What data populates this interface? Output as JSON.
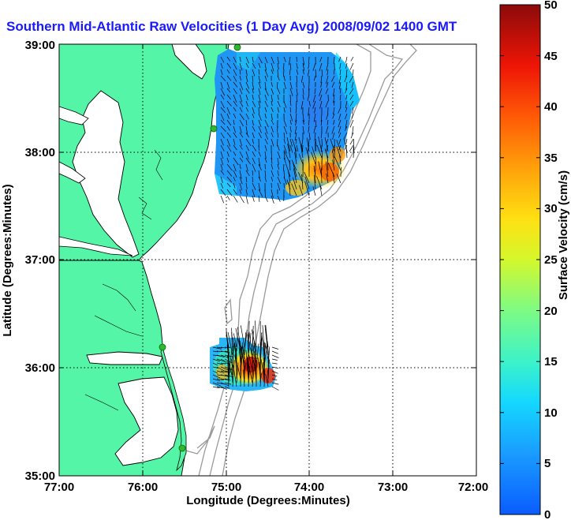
{
  "title": "Southern Mid-Atlantic Raw Velocities (1 Day Avg) 2008/09/02 1400 GMT",
  "x_axis": {
    "label": "Longitude (Degrees:Minutes)",
    "ticks": [
      "77:00",
      "76:00",
      "75:00",
      "74:00",
      "73:00",
      "72:00"
    ],
    "values": [
      -77,
      -76,
      -75,
      -74,
      -73,
      -72
    ]
  },
  "y_axis": {
    "label": "Latitude (Degrees:Minutes)",
    "ticks": [
      "39:00",
      "38:00",
      "37:00",
      "36:00",
      "35:00"
    ],
    "values": [
      39,
      38,
      37,
      36,
      35
    ]
  },
  "colorbar": {
    "label": "Surface Velocity (cm/s)",
    "ticks": [
      "50",
      "45",
      "40",
      "35",
      "30",
      "25",
      "20",
      "15",
      "10",
      "5",
      "0"
    ],
    "min": 0,
    "max": 50
  },
  "colors": {
    "land": "#55f5a8",
    "coastline": "#000000",
    "bathymetry": "#9a9a9a",
    "title": "#1a1aff",
    "station": "#2db82d"
  },
  "grid": true
}
